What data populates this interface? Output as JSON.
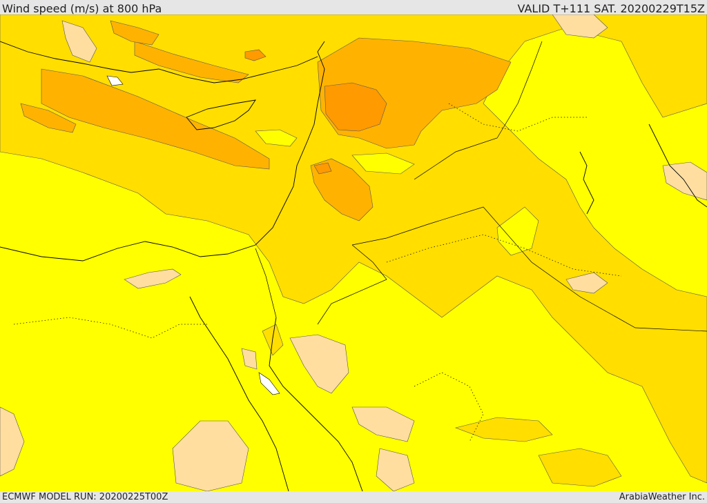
{
  "header": {
    "title": "Wind speed (m/s) at 800 hPa",
    "valid_time": "VALID T+111 SAT. 20200229T15Z"
  },
  "footer": {
    "model_run": "ECMWF MODEL RUN: 20200225T00Z",
    "credit": "ArabiaWeather Inc."
  },
  "map": {
    "background_fill": "#ffff00",
    "band_colors": {
      "light": "#ffdea0",
      "medium": "#ffde00",
      "strong": "#ffb300",
      "stronger": "#ff9a00",
      "water_white": "#ffffff"
    },
    "line_color": "#000000"
  }
}
